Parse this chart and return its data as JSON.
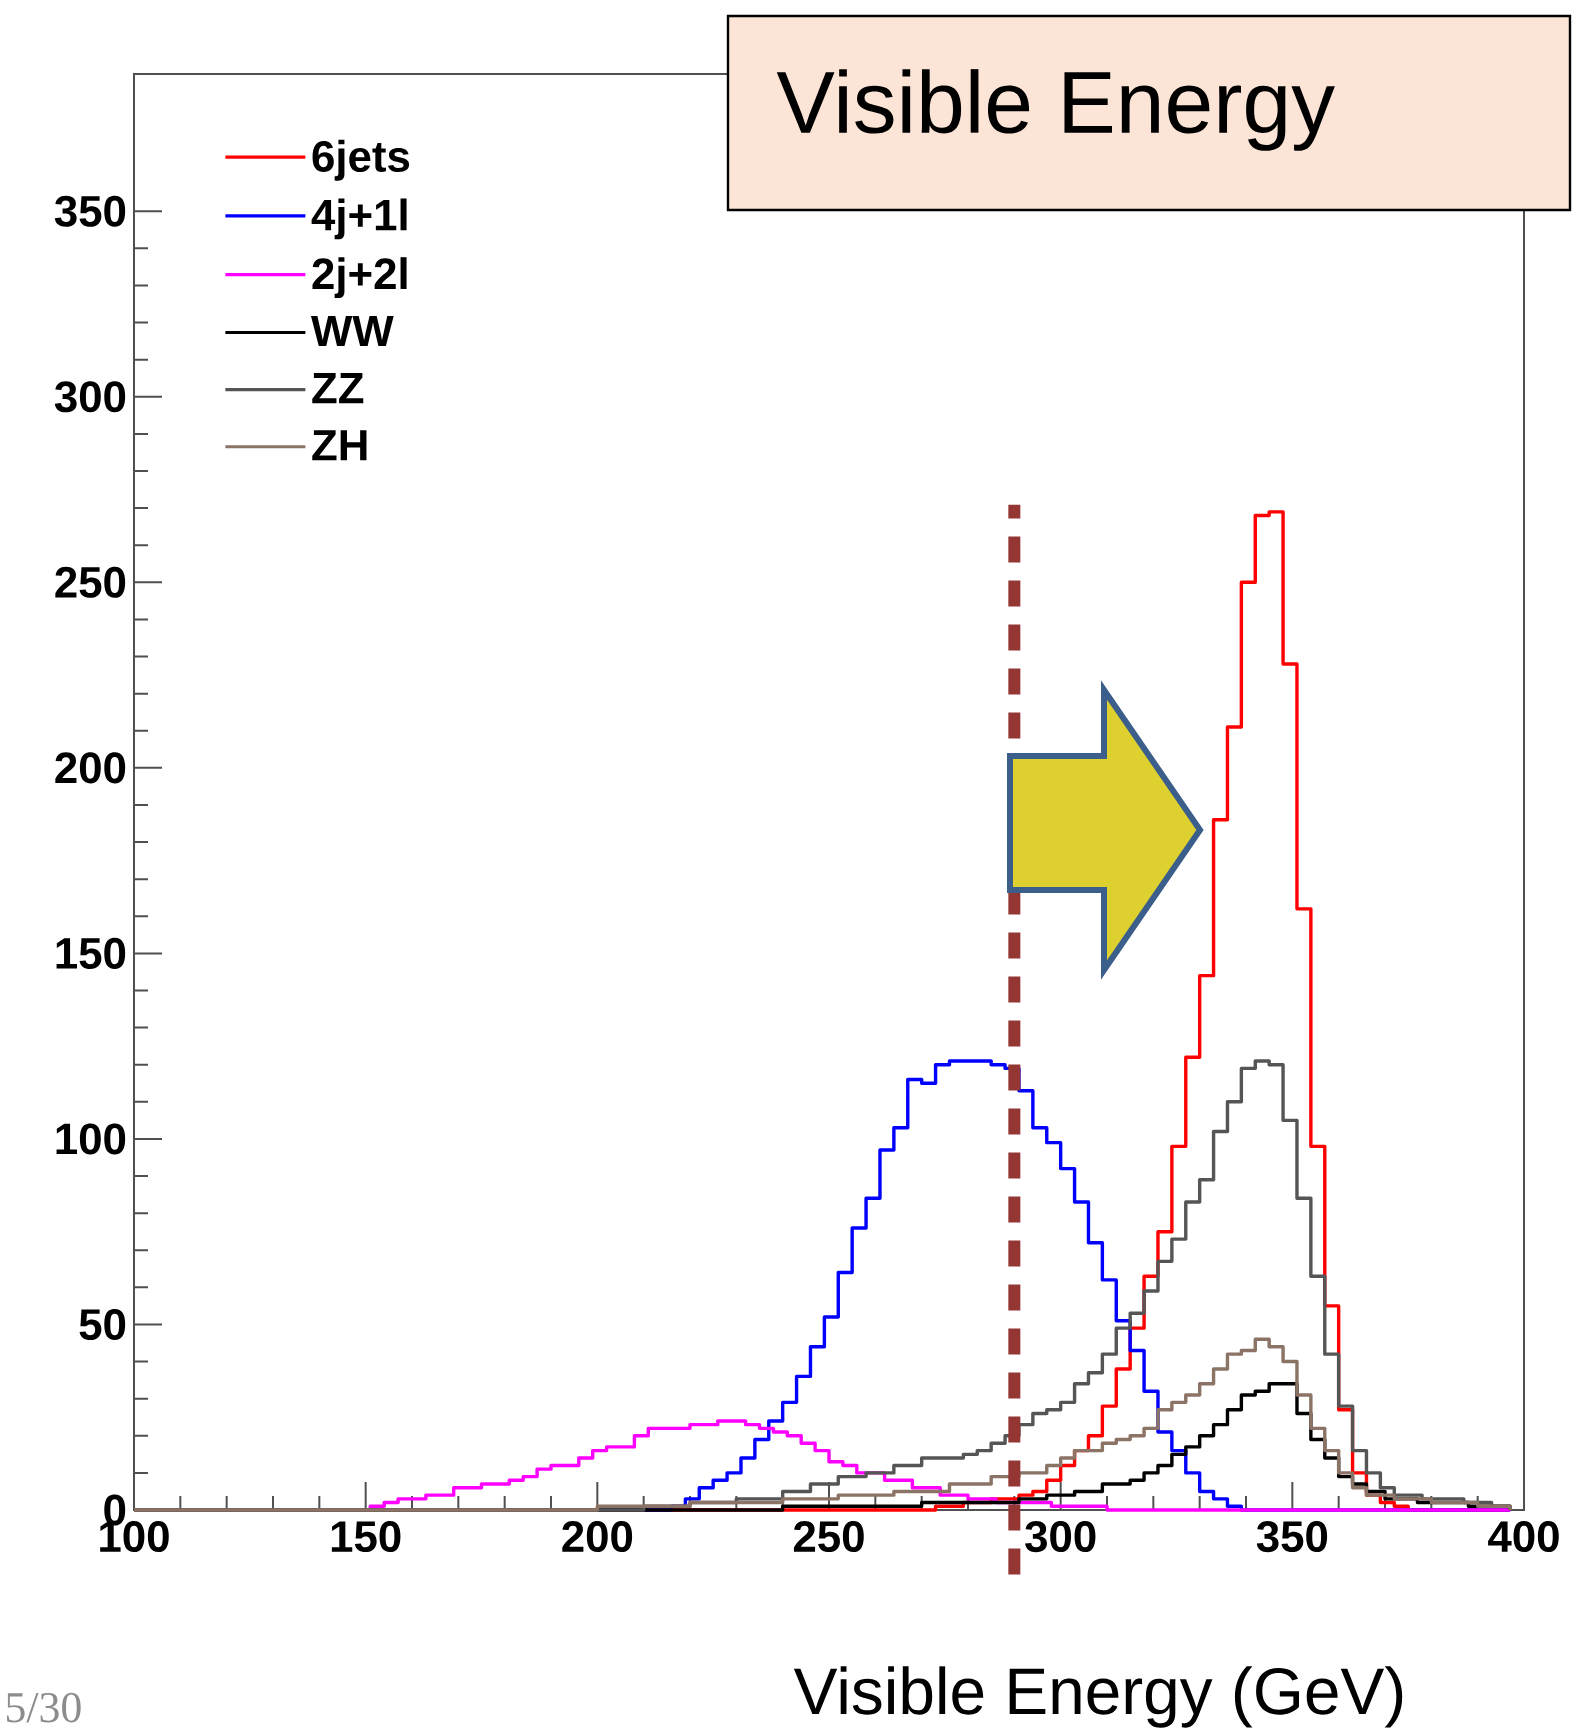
{
  "chart_data": {
    "type": "step",
    "title": "Visible Energy",
    "xlabel": "Visible Energy (GeV)",
    "annotations": [
      "5/30"
    ],
    "xlim": [
      100,
      400
    ],
    "ylim": [
      0,
      387
    ],
    "xticks": [
      100,
      150,
      200,
      250,
      300,
      350,
      400
    ],
    "yticks": [
      0,
      50,
      100,
      150,
      200,
      250,
      300,
      350
    ],
    "legend": "top left",
    "ref_lines": [
      {
        "axis": "x",
        "value": 290,
        "color": "#943634",
        "line_style": "dashed"
      }
    ],
    "series": [
      {
        "name": "6jets",
        "color": "#ff0000",
        "x": [
          100,
          270,
          273,
          279,
          285,
          291,
          294,
          297,
          300,
          303,
          306,
          309,
          312,
          315,
          318,
          321,
          324,
          327,
          330,
          333,
          336,
          339,
          342,
          345,
          348,
          351,
          354,
          357,
          360,
          363,
          366,
          369,
          372,
          375,
          397
        ],
        "values": [
          0,
          0,
          1,
          2,
          3,
          4,
          5,
          8,
          12,
          16,
          20,
          28,
          38,
          49,
          63,
          75,
          98,
          122,
          144,
          186,
          211,
          250,
          268,
          269,
          228,
          162,
          98,
          55,
          27,
          10,
          4,
          2,
          1,
          0,
          0
        ]
      },
      {
        "name": "4j+1l",
        "color": "#0000ff",
        "x": [
          100,
          216,
          219,
          222,
          225,
          228,
          231,
          234,
          237,
          240,
          243,
          246,
          249,
          252,
          255,
          258,
          261,
          264,
          267,
          270,
          273,
          276,
          279,
          282,
          285,
          288,
          291,
          294,
          297,
          300,
          303,
          306,
          309,
          312,
          315,
          318,
          321,
          324,
          327,
          330,
          333,
          336,
          339,
          397
        ],
        "values": [
          0,
          1,
          3,
          6,
          8,
          10,
          14,
          19,
          24,
          29,
          36,
          44,
          52,
          64,
          76,
          84,
          97,
          103,
          116,
          115,
          120,
          121,
          121,
          121,
          120,
          119,
          113,
          103,
          99,
          92,
          83,
          72,
          62,
          51,
          43,
          32,
          21,
          16,
          10,
          5,
          3,
          1,
          0,
          0
        ]
      },
      {
        "name": "2j+2l",
        "color": "#ff00ff",
        "x": [
          100,
          151,
          154,
          157,
          163,
          169,
          175,
          181,
          184,
          187,
          190,
          196,
          199,
          202,
          208,
          211,
          217,
          220,
          226,
          232,
          235,
          238,
          241,
          244,
          247,
          250,
          253,
          256,
          262,
          268,
          274,
          280,
          286,
          298,
          310,
          397
        ],
        "values": [
          0,
          1,
          2,
          3,
          4,
          6,
          7,
          8,
          9,
          11,
          12,
          14,
          16,
          17,
          20,
          22,
          22,
          23,
          24,
          23,
          22,
          21,
          20,
          18,
          16,
          13,
          12,
          10,
          8,
          6,
          4,
          3,
          2,
          1,
          0,
          0
        ]
      },
      {
        "name": "WW",
        "color": "#000000",
        "x": [
          100,
          240,
          270,
          291,
          297,
          303,
          309,
          315,
          318,
          321,
          324,
          327,
          330,
          333,
          336,
          339,
          342,
          345,
          348,
          351,
          354,
          357,
          360,
          363,
          366,
          370,
          377,
          388,
          397
        ],
        "values": [
          0,
          1,
          2,
          3,
          4,
          5,
          7,
          8,
          10,
          12,
          15,
          17,
          20,
          23,
          27,
          31,
          32,
          34,
          34,
          26,
          19,
          14,
          9,
          7,
          5,
          3,
          2,
          1,
          0
        ]
      },
      {
        "name": "ZZ",
        "color": "#555555",
        "x": [
          100,
          210,
          220,
          230,
          240,
          246,
          252,
          258,
          264,
          270,
          279,
          282,
          285,
          288,
          291,
          294,
          297,
          300,
          303,
          306,
          309,
          312,
          315,
          318,
          321,
          324,
          327,
          330,
          333,
          336,
          339,
          342,
          345,
          348,
          351,
          354,
          357,
          360,
          363,
          366,
          369,
          372,
          378,
          387,
          393,
          397
        ],
        "values": [
          0,
          1,
          2,
          3,
          5,
          7,
          9,
          10,
          12,
          14,
          15,
          16,
          18,
          20,
          23,
          26,
          27,
          29,
          34,
          37,
          42,
          49,
          53,
          59,
          67,
          73,
          83,
          89,
          102,
          110,
          119,
          121,
          120,
          105,
          84,
          63,
          42,
          28,
          16,
          10,
          6,
          4,
          3,
          2,
          1,
          0
        ]
      },
      {
        "name": "ZH",
        "color": "#8b7366",
        "x": [
          100,
          200,
          220,
          240,
          252,
          264,
          276,
          285,
          291,
          297,
          300,
          303,
          306,
          309,
          312,
          315,
          318,
          321,
          324,
          327,
          330,
          333,
          336,
          339,
          342,
          345,
          348,
          351,
          354,
          357,
          360,
          363,
          366,
          372,
          380,
          390,
          397
        ],
        "values": [
          0,
          1,
          2,
          3,
          4,
          5,
          7,
          9,
          10,
          12,
          14,
          16,
          16,
          18,
          19,
          20,
          22,
          27,
          29,
          31,
          34,
          38,
          42,
          43,
          46,
          44,
          40,
          31,
          22,
          16,
          10,
          6,
          4,
          3,
          2,
          1,
          0
        ]
      }
    ]
  }
}
